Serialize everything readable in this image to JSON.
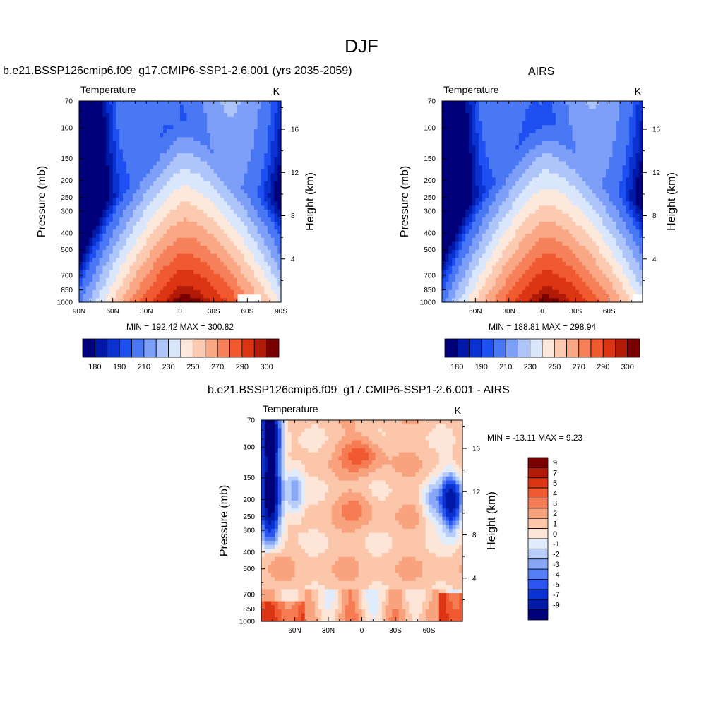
{
  "page_title": "DJF",
  "chart_data": [
    {
      "type": "heatmap",
      "subtype": "latitude-pressure filled contour",
      "title": "b.e21.BSSP126cmip6.f09_g17.CMIP6-SSP1-2.6.001 (yrs 2035-2059)",
      "variable_label": "Temperature",
      "units_label": "K",
      "ylabel": "Pressure (mb)",
      "ylabel_right": "Height (km)",
      "x_ticks": [
        "90N",
        "60N",
        "30N",
        "0",
        "30S",
        "60S",
        "90S"
      ],
      "x_range": [
        90,
        -90
      ],
      "y_ticks": [
        "70",
        "100",
        "150",
        "200",
        "250",
        "300",
        "400",
        "500",
        "700",
        "850",
        "1000"
      ],
      "y_range": [
        70,
        1000
      ],
      "y_scale": "log",
      "height_ticks": [
        "16",
        "12",
        "8",
        "4"
      ],
      "stats_text": "MIN = 192.42  MAX = 300.82",
      "min": 192.42,
      "max": 300.82,
      "colorbar_orientation": "horizontal",
      "colorbar_labels": [
        "180",
        "190",
        "210",
        "230",
        "250",
        "270",
        "290",
        "300"
      ],
      "levels": [
        175,
        180,
        185,
        190,
        200,
        210,
        220,
        230,
        240,
        250,
        260,
        270,
        280,
        290,
        295,
        300
      ]
    },
    {
      "type": "heatmap",
      "subtype": "latitude-pressure filled contour",
      "title": "AIRS",
      "variable_label": "Temperature",
      "units_label": "K",
      "ylabel": "Pressure (mb)",
      "ylabel_right": "Height (km)",
      "x_ticks": [
        "60N",
        "30N",
        "0",
        "30S",
        "60S"
      ],
      "x_range": [
        90,
        -90
      ],
      "y_ticks": [
        "70",
        "100",
        "150",
        "200",
        "250",
        "300",
        "400",
        "500",
        "700",
        "850",
        "1000"
      ],
      "y_range": [
        70,
        1000
      ],
      "y_scale": "log",
      "height_ticks": [
        "16",
        "12",
        "8",
        "4"
      ],
      "stats_text": "MIN = 188.81  MAX = 298.94",
      "min": 188.81,
      "max": 298.94,
      "colorbar_orientation": "horizontal",
      "colorbar_labels": [
        "180",
        "190",
        "210",
        "230",
        "250",
        "270",
        "290",
        "300"
      ],
      "levels": [
        175,
        180,
        185,
        190,
        200,
        210,
        220,
        230,
        240,
        250,
        260,
        270,
        280,
        290,
        295,
        300
      ]
    },
    {
      "type": "heatmap",
      "subtype": "latitude-pressure filled contour (difference)",
      "title": "b.e21.BSSP126cmip6.f09_g17.CMIP6-SSP1-2.6.001 - AIRS",
      "variable_label": "Temperature",
      "units_label": "K",
      "ylabel": "Pressure (mb)",
      "ylabel_right": "Height (km)",
      "x_ticks": [
        "60N",
        "30N",
        "0",
        "30S",
        "60S"
      ],
      "x_range": [
        90,
        -90
      ],
      "y_ticks": [
        "70",
        "100",
        "150",
        "200",
        "250",
        "300",
        "400",
        "500",
        "700",
        "850",
        "1000"
      ],
      "y_range": [
        70,
        1000
      ],
      "y_scale": "log",
      "height_ticks": [
        "16",
        "12",
        "8",
        "4"
      ],
      "stats_text": "MIN = -13.11  MAX =   9.23",
      "min": -13.11,
      "max": 9.23,
      "colorbar_orientation": "vertical",
      "colorbar_labels": [
        "9",
        "7",
        "5",
        "4",
        "3",
        "2",
        "1",
        "0",
        "-1",
        "-2",
        "-3",
        "-4",
        "-5",
        "-7",
        "-9"
      ],
      "levels": [
        -9,
        -7,
        -5,
        -4,
        -3,
        -2,
        -1,
        0,
        1,
        2,
        3,
        4,
        5,
        7,
        9
      ]
    }
  ],
  "palette_16": [
    "#00007a",
    "#0019a6",
    "#0a32d0",
    "#1e4ff0",
    "#4a78f5",
    "#7d9ff7",
    "#aec5fa",
    "#d9e6fb",
    "#fde8dc",
    "#fcc9b1",
    "#f9a784",
    "#f6805a",
    "#f15a30",
    "#dc3514",
    "#b01a06",
    "#7a0000"
  ],
  "palette_diff": [
    "#00007a",
    "#0019a6",
    "#0a32d0",
    "#2a55f0",
    "#5580f5",
    "#88a8f7",
    "#b8cdfa",
    "#e0ebfb",
    "#fde6d8",
    "#fcc6ab",
    "#f9a27e",
    "#f57c52",
    "#f15a30",
    "#dc3514",
    "#b01a06",
    "#7a0000"
  ]
}
